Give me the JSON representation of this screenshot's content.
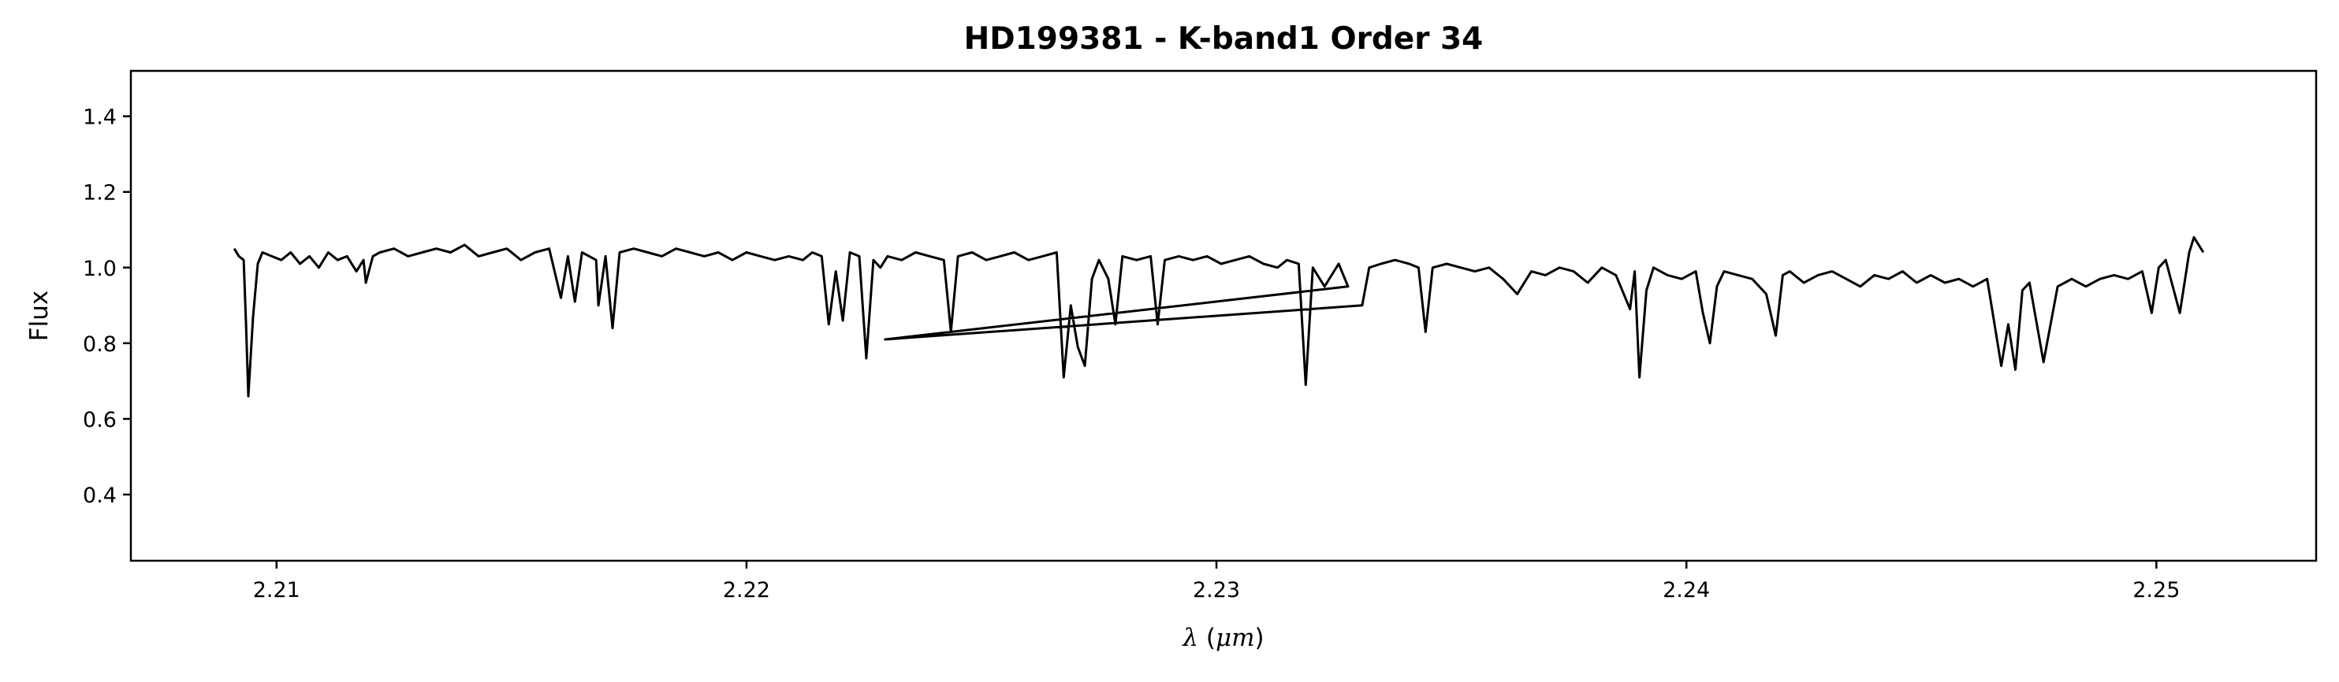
{
  "chart_data": {
    "type": "line",
    "title": "HD199381 - K-band1 Order 34",
    "xlabel": "λ (μm)",
    "ylabel": "Flux",
    "xlim": [
      2.2069,
      2.2534
    ],
    "ylim": [
      0.225,
      1.52
    ],
    "xticks": [
      {
        "value": 2.21,
        "label": "2.21"
      },
      {
        "value": 2.22,
        "label": "2.22"
      },
      {
        "value": 2.23,
        "label": "2.23"
      },
      {
        "value": 2.24,
        "label": "2.24"
      },
      {
        "value": 2.25,
        "label": "2.25"
      }
    ],
    "yticks": [
      {
        "value": 0.4,
        "label": "0.4"
      },
      {
        "value": 0.6,
        "label": "0.6"
      },
      {
        "value": 0.8,
        "label": "0.8"
      },
      {
        "value": 1.0,
        "label": "1.0"
      },
      {
        "value": 1.2,
        "label": "1.2"
      },
      {
        "value": 1.4,
        "label": "1.4"
      }
    ],
    "grid": false,
    "line_color": "#000000",
    "series": [
      {
        "x": [
          2.2091,
          2.2092,
          2.2093,
          2.20935,
          2.2094,
          2.2095,
          2.2096,
          2.2097,
          2.2099,
          2.2101,
          2.2103,
          2.2105,
          2.2107,
          2.2109,
          2.2111,
          2.2113,
          2.2115,
          2.2117,
          2.21185,
          2.2119,
          2.21205,
          2.2122,
          2.2125,
          2.2128,
          2.2131,
          2.2134,
          2.2137,
          2.214,
          2.2143,
          2.2146,
          2.2149,
          2.2152,
          2.2155,
          2.2158,
          2.21605,
          2.2162,
          2.21635,
          2.2165,
          2.2168,
          2.21685,
          2.217,
          2.21715,
          2.2173,
          2.2176,
          2.2179,
          2.2182,
          2.2185,
          2.2188,
          2.2191,
          2.2194,
          2.2197,
          2.22,
          2.2203,
          2.2206,
          2.2209,
          2.2212,
          2.2214,
          2.2216,
          2.22175,
          2.2219,
          2.22205,
          2.2222,
          2.2224,
          2.22255,
          2.2227,
          2.22285,
          2.223,
          2.2233,
          2.2236,
          2.2239,
          2.2242,
          2.22435,
          2.2245,
          2.2248,
          2.2251,
          2.2254,
          2.2257,
          2.226,
          2.2263,
          2.2266,
          2.22675,
          2.2269,
          2.22705,
          2.2272,
          2.22735,
          2.2275,
          2.2277,
          2.22785,
          2.228,
          2.2283,
          2.2286,
          2.22875,
          2.2289,
          2.2292,
          2.2295,
          2.2298,
          2.2301,
          2.2304,
          2.2307,
          2.231,
          2.2313,
          2.2315,
          2.23175,
          2.2319,
          2.23205,
          2.2323,
          2.2326,
          2.2328,
          2.22295,
          2.2331,
          2.23325,
          2.2335,
          2.2338,
          2.2341,
          2.2343,
          2.23445,
          2.2346,
          2.2349,
          2.2352,
          2.2355,
          2.2358,
          2.2361,
          2.2364,
          2.2367,
          2.237,
          2.2373,
          2.2376,
          2.2379,
          2.2382,
          2.2385,
          2.2388,
          2.2389,
          2.239,
          2.23915,
          2.2393,
          2.2396,
          2.2399,
          2.2402,
          2.24035,
          2.2405,
          2.24065,
          2.2408,
          2.2411,
          2.2414,
          2.2417,
          2.2419,
          2.24205,
          2.2422,
          2.2425,
          2.2428,
          2.2431,
          2.2434,
          2.2437,
          2.244,
          2.2443,
          2.2446,
          2.2449,
          2.2452,
          2.2455,
          2.2458,
          2.2461,
          2.2464,
          2.2467,
          2.24685,
          2.247,
          2.24715,
          2.2473,
          2.2476,
          2.2479,
          2.24805,
          2.2482,
          2.2485,
          2.2488,
          2.2491,
          2.2494,
          2.2497,
          2.2499,
          2.25005,
          2.2502,
          2.2505,
          2.2507,
          2.2508,
          2.2509,
          2.251
        ],
        "y": [
          1.05,
          1.03,
          1.02,
          0.85,
          0.66,
          0.87,
          1.01,
          1.04,
          1.03,
          1.02,
          1.04,
          1.01,
          1.03,
          1.0,
          1.04,
          1.02,
          1.03,
          0.99,
          1.02,
          0.96,
          1.03,
          1.04,
          1.05,
          1.03,
          1.04,
          1.05,
          1.04,
          1.06,
          1.03,
          1.04,
          1.05,
          1.02,
          1.04,
          1.05,
          0.92,
          1.03,
          0.91,
          1.04,
          1.02,
          0.9,
          1.03,
          0.84,
          1.04,
          1.05,
          1.04,
          1.03,
          1.05,
          1.04,
          1.03,
          1.04,
          1.02,
          1.04,
          1.03,
          1.02,
          1.03,
          1.02,
          1.04,
          1.03,
          0.85,
          0.99,
          0.86,
          1.04,
          1.03,
          0.76,
          1.02,
          1.0,
          1.03,
          1.02,
          1.04,
          1.03,
          1.02,
          0.83,
          1.03,
          1.04,
          1.02,
          1.03,
          1.04,
          1.02,
          1.03,
          1.04,
          0.71,
          0.9,
          0.79,
          0.74,
          0.97,
          1.02,
          0.97,
          0.85,
          1.03,
          1.02,
          1.03,
          0.85,
          1.02,
          1.03,
          1.02,
          1.03,
          1.01,
          1.02,
          1.03,
          1.01,
          1.0,
          1.02,
          1.01,
          0.69,
          1.0,
          0.95,
          1.01,
          0.95,
          0.81,
          0.9,
          1.0,
          1.01,
          1.02,
          1.01,
          1.0,
          0.83,
          1.0,
          1.01,
          1.0,
          0.99,
          1.0,
          0.97,
          0.93,
          0.99,
          0.98,
          1.0,
          0.99,
          0.96,
          1.0,
          0.98,
          0.89,
          0.99,
          0.71,
          0.94,
          1.0,
          0.98,
          0.97,
          0.99,
          0.88,
          0.8,
          0.95,
          0.99,
          0.98,
          0.97,
          0.93,
          0.82,
          0.98,
          0.99,
          0.96,
          0.98,
          0.99,
          0.97,
          0.95,
          0.98,
          0.97,
          0.99,
          0.96,
          0.98,
          0.96,
          0.97,
          0.95,
          0.97,
          0.74,
          0.85,
          0.73,
          0.94,
          0.96,
          0.75,
          0.95,
          0.96,
          0.97,
          0.95,
          0.97,
          0.98,
          0.97,
          0.99,
          0.88,
          1.0,
          1.02,
          0.88,
          1.04,
          1.08,
          1.06,
          1.04
        ]
      }
    ]
  }
}
